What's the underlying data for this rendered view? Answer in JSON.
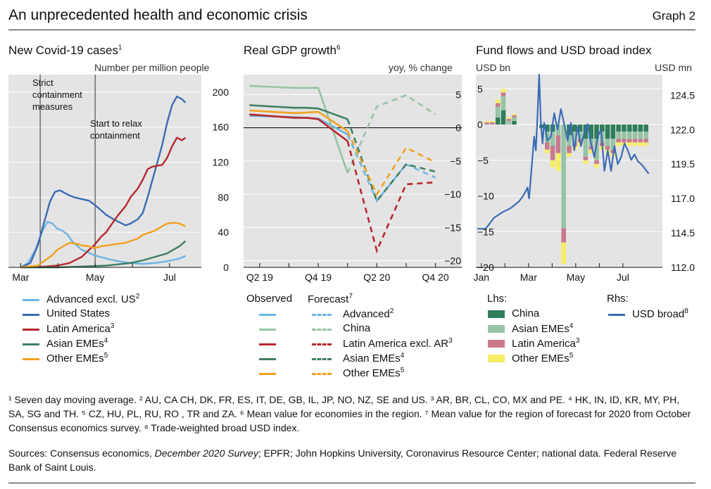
{
  "header": {
    "title": "An unprecedented health and economic crisis",
    "graph_no": "Graph 2"
  },
  "panel1": {
    "title": "New Covid-19 cases",
    "title_sup": "1",
    "units": "Number per million people",
    "annot_strict": "Strict\ncontainment\nmeasures",
    "annot_relax": "Start to relax\ncontainment",
    "legend": [
      {
        "label": "Advanced excl. US",
        "sup": "2",
        "color": "#6cb4e4"
      },
      {
        "label": "United States",
        "sup": "",
        "color": "#3b6cb4"
      },
      {
        "label": "Latin America",
        "sup": "3",
        "color": "#b5282e"
      },
      {
        "label": "Asian EMEs",
        "sup": "4",
        "color": "#3e8060"
      },
      {
        "label": "Other EMEs",
        "sup": "5",
        "color": "#f0a21e"
      }
    ]
  },
  "panel2": {
    "title": "Real GDP growth",
    "title_sup": "6",
    "units": "yoy, % change",
    "legend_observed": "Observed",
    "legend_forecast": "Forecast",
    "legend_forecast_sup": "7",
    "legend": [
      {
        "label": "Advanced",
        "sup": "2",
        "color": "#6cb4e4"
      },
      {
        "label": "China",
        "sup": "",
        "color": "#96c4a4"
      },
      {
        "label": "Latin America excl. AR",
        "sup": "3",
        "color": "#b5282e"
      },
      {
        "label": "Asian EMEs",
        "sup": "4",
        "color": "#3e8060"
      },
      {
        "label": "Other EMEs",
        "sup": "5",
        "color": "#f0a21e"
      }
    ]
  },
  "panel3": {
    "title": "Fund flows and USD broad index",
    "units_left": "USD bn",
    "units_right": "USD mn",
    "lhs_label": "Lhs:",
    "rhs_label": "Rhs:",
    "legend_lhs": [
      {
        "label": "China",
        "sup": "",
        "color": "#2e7d5b"
      },
      {
        "label": "Asian EMEs",
        "sup": "4",
        "color": "#96c4a4"
      },
      {
        "label": "Latin America",
        "sup": "3",
        "color": "#c87a8e"
      },
      {
        "label": "Other EMEs",
        "sup": "5",
        "color": "#f6ee64"
      }
    ],
    "legend_rhs": [
      {
        "label": "USD broad",
        "sup": "8",
        "color": "#3b6cb4"
      }
    ]
  },
  "footnotes": {
    "line1": "¹ Seven day moving average.  ² AU, CA CH, DK, FR, ES, IT, DE, GB, IL, JP, NO, NZ, SE and US.  ³ AR, BR, CL, CO, MX and PE.  ⁴ HK, IN, ID, KR, MY, PH, SA, SG and TH.  ⁵ CZ, HU, PL, RU, RO , TR and ZA.  ⁶ Mean value for economies in the region.  ⁷ Mean value for the region of forecast for 2020 from October Consensus economics survey. ⁸ Trade-weighted broad USD index.",
    "sources_pre": "Sources: Consensus economics, ",
    "sources_italic": "December 2020 Survey",
    "sources_post": "; EPFR; John Hopkins University, Coronavirus Resource Center; national data. Federal Reserve Bank of Saint Louis."
  },
  "chart_data": [
    {
      "type": "line",
      "id": "covid-cases",
      "x_ticks": [
        "Mar",
        "May",
        "Jul"
      ],
      "x_tick_index": [
        0,
        61,
        122
      ],
      "ylim": [
        0,
        220
      ],
      "y_ticks": [
        0,
        40,
        80,
        120,
        160,
        200
      ],
      "grid": true,
      "vlines": [
        16,
        61
      ],
      "series": [
        {
          "name": "Advanced excl. US",
          "color": "#6cb4e4",
          "days": [
            0,
            6,
            12,
            18,
            22,
            26,
            30,
            34,
            38,
            42,
            46,
            50,
            54,
            60,
            70,
            80,
            90,
            100,
            110,
            120,
            130,
            135
          ],
          "values": [
            0,
            5,
            20,
            42,
            52,
            50,
            44,
            42,
            38,
            30,
            25,
            20,
            18,
            14,
            10,
            7,
            5,
            4,
            5,
            7,
            10,
            13
          ]
        },
        {
          "name": "United States",
          "color": "#3b6cb4",
          "days": [
            0,
            8,
            14,
            20,
            24,
            28,
            32,
            36,
            40,
            44,
            50,
            56,
            60,
            66,
            70,
            76,
            80,
            86,
            90,
            96,
            100,
            104,
            108,
            112,
            116,
            120,
            124,
            128,
            132,
            135
          ],
          "values": [
            0,
            5,
            25,
            55,
            75,
            86,
            88,
            85,
            82,
            80,
            78,
            76,
            72,
            65,
            60,
            55,
            52,
            48,
            50,
            55,
            62,
            80,
            100,
            120,
            140,
            165,
            185,
            195,
            192,
            188
          ]
        },
        {
          "name": "Latin America",
          "color": "#b5282e",
          "days": [
            0,
            20,
            30,
            40,
            50,
            56,
            60,
            66,
            70,
            76,
            80,
            86,
            90,
            96,
            100,
            104,
            108,
            112,
            116,
            120,
            124,
            128,
            132,
            135
          ],
          "values": [
            0,
            1,
            2,
            5,
            12,
            20,
            25,
            35,
            40,
            52,
            60,
            70,
            80,
            90,
            100,
            112,
            115,
            116,
            117,
            125,
            138,
            148,
            145,
            148
          ]
        },
        {
          "name": "Asian EMEs",
          "color": "#3e8060",
          "days": [
            0,
            30,
            50,
            70,
            90,
            100,
            110,
            120,
            130,
            135
          ],
          "values": [
            0,
            0,
            1,
            2,
            5,
            8,
            12,
            16,
            24,
            30
          ]
        },
        {
          "name": "Other EMEs",
          "color": "#f0a21e",
          "days": [
            0,
            14,
            20,
            26,
            30,
            36,
            40,
            46,
            50,
            56,
            60,
            66,
            70,
            76,
            80,
            86,
            90,
            96,
            100,
            106,
            110,
            116,
            120,
            126,
            130,
            135
          ],
          "values": [
            0,
            2,
            8,
            14,
            20,
            25,
            28,
            27,
            25,
            24,
            22,
            24,
            25,
            26,
            27,
            28,
            30,
            33,
            37,
            40,
            42,
            47,
            50,
            51,
            50,
            47
          ]
        }
      ]
    },
    {
      "type": "line",
      "id": "real-gdp-growth",
      "x_ticks": [
        "Q2 19",
        "Q4 19",
        "Q2 20",
        "Q4 20"
      ],
      "x_tick_index": [
        0,
        2,
        4,
        6
      ],
      "ylim": [
        -21,
        8
      ],
      "y_ticks": [
        -20,
        -15,
        -10,
        -5,
        0,
        5
      ],
      "zero_line": true,
      "grid": true,
      "series": [
        {
          "name": "Advanced",
          "color": "#6cb4e4",
          "quarters": [
            -0.35,
            1.2,
            1.6,
            2,
            3,
            4,
            5,
            6
          ],
          "values": [
            1.8,
            1.6,
            1.5,
            1.4,
            -1,
            -11,
            -5.5,
            -7.5
          ],
          "forecast_from": 5
        },
        {
          "name": "China",
          "color": "#96c4a4",
          "quarters": [
            -0.35,
            1.2,
            1.6,
            2,
            3,
            4,
            5,
            6
          ],
          "values": [
            6.3,
            6.0,
            6.0,
            6.0,
            -6.8,
            3.2,
            4.9,
            2.0
          ],
          "forecast_from": 5
        },
        {
          "name": "Latin America excl. AR",
          "color": "#b5282e",
          "quarters": [
            -0.35,
            1.2,
            1.6,
            2,
            3,
            4,
            5,
            6
          ],
          "values": [
            2,
            1.5,
            1.5,
            1.3,
            -2,
            -18.5,
            -8.5,
            -8.2
          ],
          "forecast_from": 5
        },
        {
          "name": "Asian EMEs",
          "color": "#3e8060",
          "quarters": [
            -0.35,
            1.2,
            1.6,
            2,
            3,
            4,
            5,
            6
          ],
          "values": [
            3.4,
            3,
            3,
            2.9,
            1.3,
            -11,
            -5.5,
            -6.6
          ],
          "forecast_from": 5
        },
        {
          "name": "Other EMEs",
          "color": "#f0a21e",
          "quarters": [
            -0.35,
            1.2,
            1.6,
            2,
            3,
            4,
            5,
            6
          ],
          "values": [
            2.6,
            2.2,
            2.3,
            2.4,
            -0.5,
            -10,
            -3,
            -5.2
          ],
          "forecast_from": 5
        }
      ]
    },
    {
      "type": "bar",
      "id": "fund-flows-usd",
      "x_ticks": [
        "Jan",
        "Mar",
        "May",
        "Jul"
      ],
      "x_tick_index": [
        0,
        8.6,
        17.2,
        25.8
      ],
      "ylim_left": [
        -20,
        7
      ],
      "y_ticks_left": [
        -20,
        -15,
        -10,
        -5,
        0,
        5
      ],
      "ylim_right": [
        112.0,
        126.0
      ],
      "y_ticks_right": [
        112.0,
        114.5,
        117.0,
        119.5,
        122.0,
        124.5
      ],
      "stacked": true,
      "weeks": [
        0,
        1,
        2,
        3,
        4,
        5,
        6,
        7,
        8,
        9,
        10,
        11,
        12,
        13,
        14,
        15,
        16,
        17,
        18,
        19,
        20,
        21,
        22,
        23,
        24,
        25,
        26,
        27,
        28,
        29,
        30
      ],
      "series": [
        {
          "name": "China",
          "axis": "left",
          "color": "#2e7d5b",
          "values": [
            0,
            0,
            0,
            1,
            2,
            0,
            0.5,
            0,
            0,
            0,
            0,
            -0.5,
            -1,
            -1,
            0,
            0,
            -1.5,
            -1,
            -1,
            -2,
            -2,
            -2,
            -1,
            -2,
            -2,
            -1,
            -1,
            -1,
            -1,
            -1,
            -1
          ]
        },
        {
          "name": "Asian EMEs",
          "axis": "left",
          "color": "#96c4a4",
          "values": [
            0,
            0,
            0,
            1.5,
            2,
            0.5,
            0.5,
            0,
            0,
            0,
            0,
            0,
            -1.5,
            -2,
            -1.5,
            -14.5,
            -1.5,
            -1.5,
            -1,
            -2.5,
            -1,
            -3,
            -1.5,
            -1,
            -1.5,
            -1,
            -1,
            -1,
            -1,
            -1,
            -1
          ]
        },
        {
          "name": "Latin America",
          "axis": "left",
          "color": "#c87a8e",
          "values": [
            0,
            0.3,
            0.3,
            0.5,
            0.5,
            0.3,
            0.3,
            0,
            0,
            0,
            0,
            0,
            -1,
            -2,
            -2.5,
            -2,
            -1,
            -0.5,
            -0.5,
            -0.5,
            -0.5,
            -0.5,
            -0.5,
            -0.5,
            -0.5,
            -0.5,
            -0.5,
            -0.5,
            -0.5,
            -0.5,
            -0.5
          ]
        },
        {
          "name": "Other EMEs",
          "axis": "left",
          "color": "#f6ee64",
          "values": [
            0,
            0.2,
            0.2,
            0.5,
            0.5,
            0.2,
            0.2,
            0,
            0,
            0,
            0,
            0,
            -0.5,
            -1,
            -2.5,
            -3,
            -0.5,
            -0.5,
            -0.5,
            -0.5,
            -0.5,
            -0.5,
            -0.5,
            -0.5,
            -0.5,
            -0.5,
            -0.5,
            -0.5,
            -0.5,
            -0.5,
            -0.5
          ]
        },
        {
          "name": "USD broad",
          "axis": "right",
          "type": "line",
          "color": "#3b6cb4",
          "days": [
            0,
            10,
            20,
            30,
            40,
            50,
            55,
            60,
            62,
            64,
            66,
            68,
            70,
            72,
            74,
            76,
            78,
            80,
            84,
            88,
            92,
            96,
            100,
            104,
            108,
            112,
            116,
            120,
            124,
            128,
            132,
            136,
            140,
            144,
            148,
            152,
            156,
            160,
            164,
            168,
            172,
            176,
            180,
            184,
            188,
            192,
            196,
            200,
            205
          ],
          "values": [
            114.8,
            114.8,
            115.6,
            116.0,
            116.3,
            116.8,
            117.2,
            117.8,
            117.0,
            118.5,
            120.0,
            121.5,
            120.5,
            123.0,
            126.0,
            122.5,
            121.0,
            122.5,
            121.2,
            121.5,
            123.2,
            122.0,
            123.5,
            122.4,
            121.2,
            122.5,
            120.5,
            122.2,
            120.8,
            121.8,
            122.4,
            121.0,
            120.0,
            121.5,
            122.0,
            119.0,
            120.5,
            119.0,
            120.8,
            119.5,
            120.0,
            121.0,
            120.5,
            119.8,
            120.2,
            119.7,
            119.5,
            119.2,
            118.8
          ]
        }
      ]
    }
  ]
}
